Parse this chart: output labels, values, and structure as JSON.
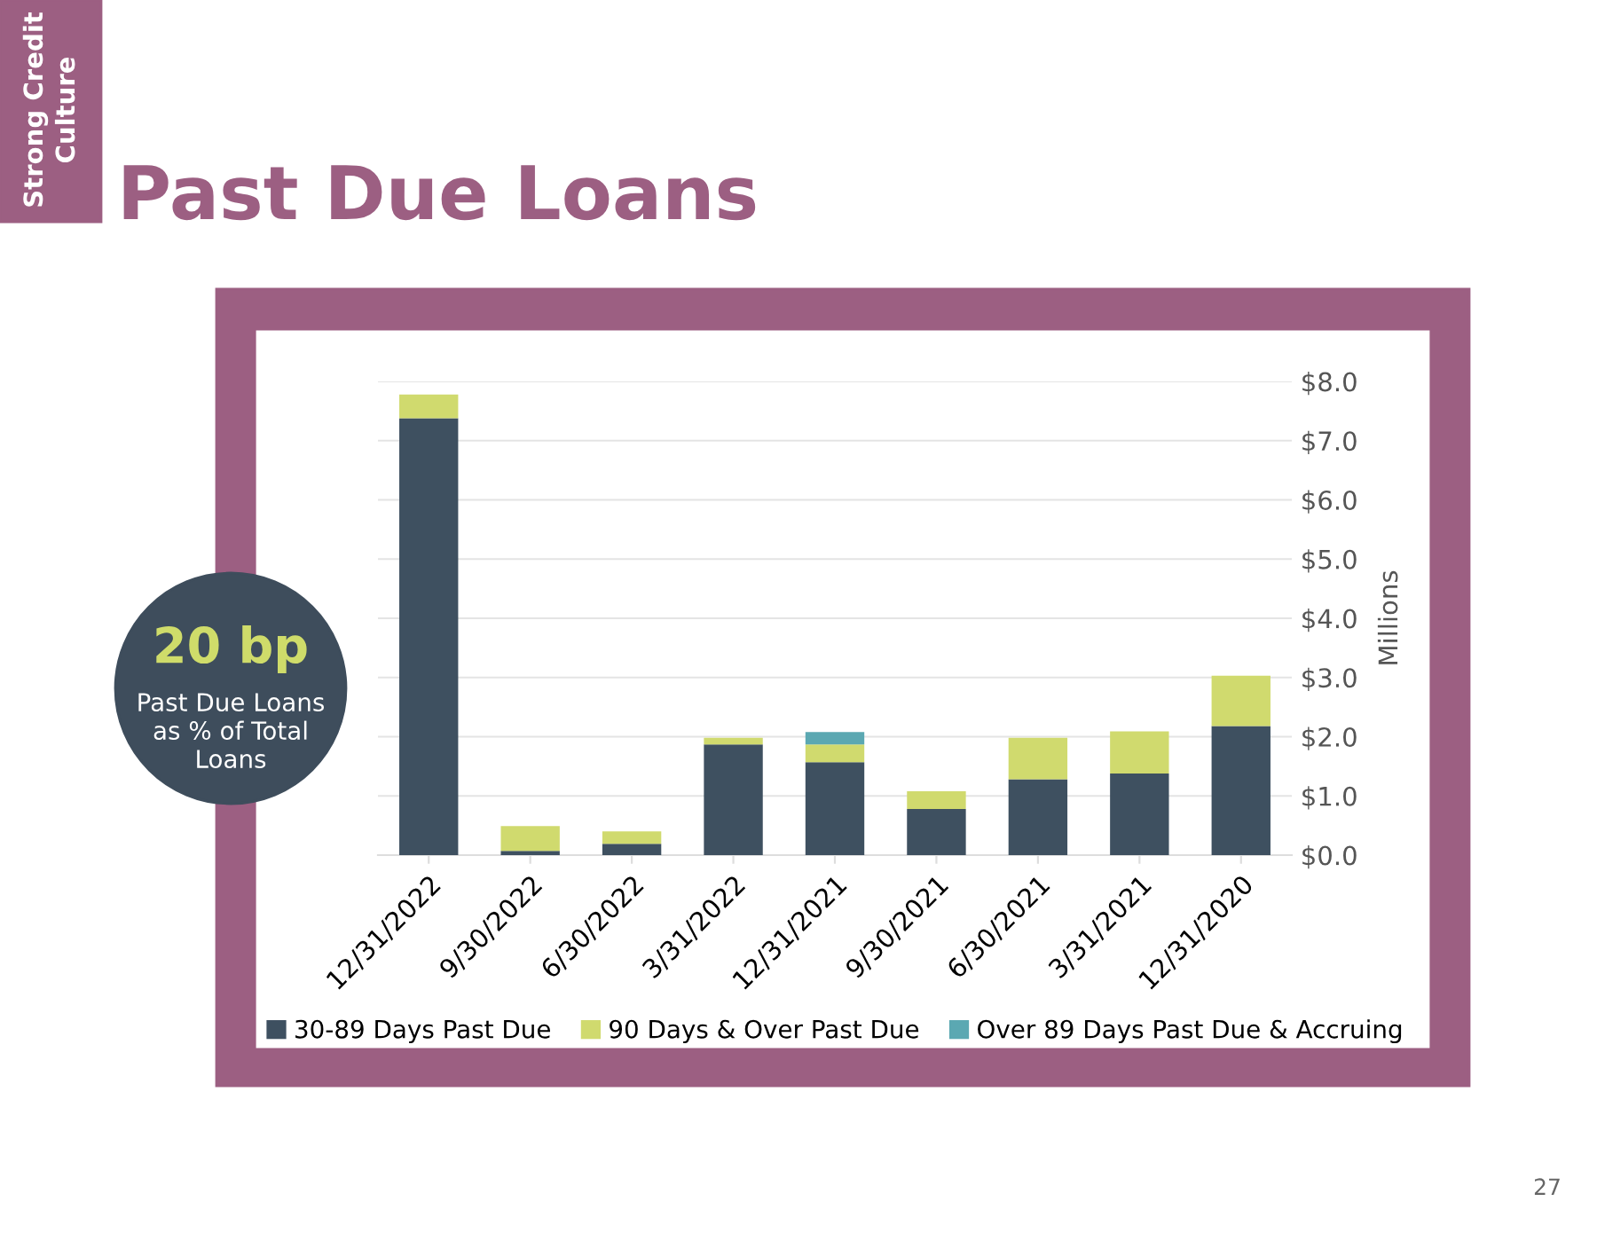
{
  "chart_data": {
    "type": "bar",
    "title": "Past Due Loans",
    "ylabel": "Millions",
    "categories": [
      "12/31/2022",
      "9/30/2022",
      "6/30/2022",
      "3/31/2022",
      "12/31/2021",
      "9/30/2021",
      "6/30/2021",
      "3/31/2021",
      "12/31/2020"
    ],
    "stacked": true,
    "series": [
      {
        "name": "30-89 Days Past Due",
        "color": "#3e5060",
        "values": [
          7.38,
          0.07,
          0.19,
          1.87,
          1.57,
          0.78,
          1.28,
          1.38,
          2.18
        ]
      },
      {
        "name": "90 Days & Over Past Due",
        "color": "#d0da6e",
        "values": [
          0.4,
          0.42,
          0.21,
          0.11,
          0.3,
          0.3,
          0.7,
          0.71,
          0.85
        ]
      },
      {
        "name": "Over 89 Days Past Due & Accruing",
        "color": "#5ba8b2",
        "values": [
          0,
          0,
          0,
          0,
          0.21,
          0,
          0,
          0,
          0
        ]
      }
    ],
    "ylim": [
      0,
      8
    ],
    "yticks": [
      {
        "value": 0,
        "label": "$0.0"
      },
      {
        "value": 1,
        "label": "$1.0"
      },
      {
        "value": 2,
        "label": "$2.0"
      },
      {
        "value": 3,
        "label": "$3.0"
      },
      {
        "value": 4,
        "label": "$4.0"
      },
      {
        "value": 5,
        "label": "$5.0"
      },
      {
        "value": 6,
        "label": "$6.0"
      },
      {
        "value": 7,
        "label": "$7.0"
      },
      {
        "value": 8,
        "label": "$8.0"
      }
    ],
    "grid": "y",
    "legend": "bottom",
    "annotations": [
      "Strong Credit",
      "Culture",
      "20 bp",
      "Past Due Loans",
      "as % of Total",
      "Loans",
      "27"
    ]
  }
}
